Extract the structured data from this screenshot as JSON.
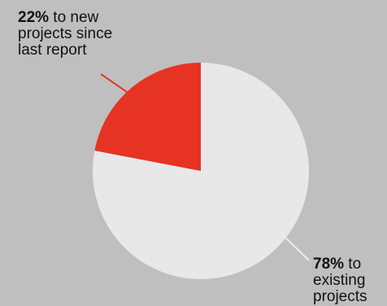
{
  "chart_data": {
    "type": "pie",
    "slices": [
      {
        "value": 22,
        "label_pct": "22%",
        "label_rest": " to new projects since last report",
        "color": "#e63323"
      },
      {
        "value": 78,
        "label_pct": "78%",
        "label_rest": " to existing projects",
        "color": "#e8e8e8"
      }
    ]
  },
  "colors": {
    "background": "#bfbfbf",
    "leader_line": "#e63323",
    "leader_line_light": "#eeeeee"
  }
}
